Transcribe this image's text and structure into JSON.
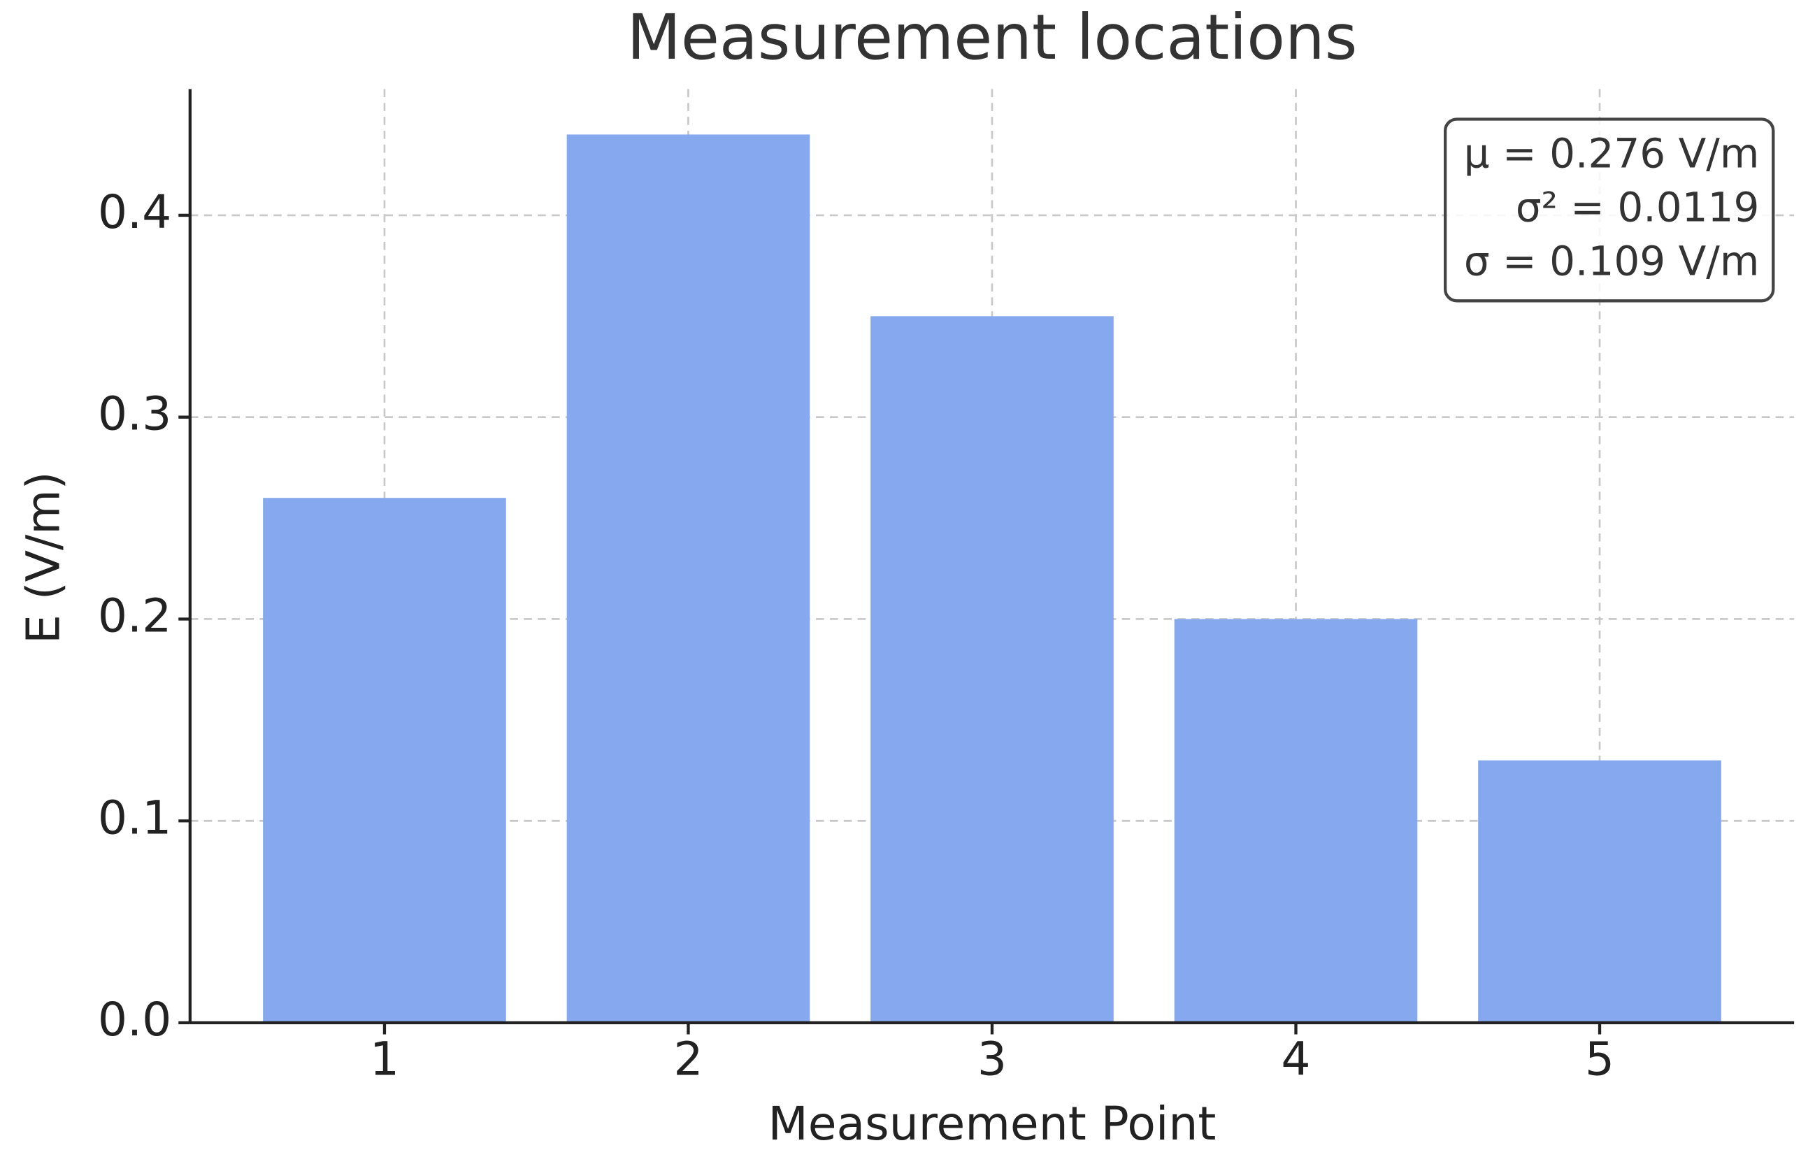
{
  "chart_data": {
    "type": "bar",
    "title": "Measurement locations",
    "x_label": "Measurement Point",
    "y_label": "E (V/m)",
    "x": [
      1,
      2,
      3,
      4,
      5
    ],
    "values": [
      0.26,
      0.44,
      0.35,
      0.2,
      0.13
    ],
    "color": "#86a8ee",
    "xlim": [
      0.36,
      5.64
    ],
    "xticks": [
      1,
      2,
      3,
      4,
      5
    ],
    "ylim": [
      0,
      0.4625
    ],
    "yticks": [
      {
        "value": 0,
        "label": "0.0"
      },
      0.1,
      0.2,
      0.3,
      0.4
    ],
    "grid": true,
    "annotations": [
      "μ = 0.276 V/m",
      "σ² = 0.0119",
      "σ = 0.109 V/m"
    ]
  }
}
